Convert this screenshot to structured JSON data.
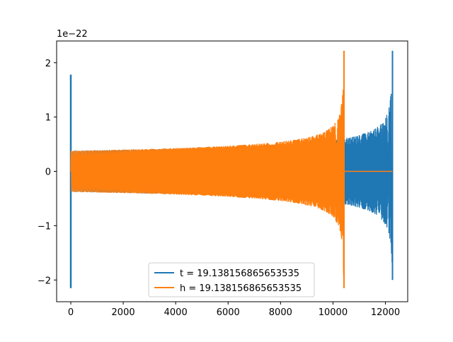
{
  "chart_data": {
    "type": "line",
    "title": "",
    "xlabel": "",
    "ylabel": "",
    "y_offset_text": "1e−22",
    "xlim": [
      -540,
      12850
    ],
    "ylim": [
      -2.4,
      2.4
    ],
    "x_ticks": [
      0,
      2000,
      4000,
      6000,
      8000,
      10000,
      12000
    ],
    "x_tick_labels": [
      "0",
      "2000",
      "4000",
      "6000",
      "8000",
      "10000",
      "12000"
    ],
    "y_ticks": [
      -2,
      -1,
      0,
      1,
      2
    ],
    "y_tick_labels": [
      "−2",
      "−1",
      "0",
      "1",
      "2"
    ],
    "grid": false,
    "legend_position": "lower center",
    "series": [
      {
        "name": "t = 19.138156865653535",
        "color": "#1f77b4",
        "description_points": {
          "spike_at_start": {
            "x": 0,
            "max": 1.78,
            "min": -2.15
          },
          "inspiral_start_amplitude": 0.38,
          "merger_x": 12270,
          "merger_peak": 2.22,
          "merger_trough": -2.0
        }
      },
      {
        "name": "h = 19.138156865653535",
        "color": "#ff7f0e",
        "description_points": {
          "inspiral_start_amplitude": 0.38,
          "merger_x": 10420,
          "merger_peak": 2.22,
          "merger_trough": -2.15,
          "after_merger_value": 0
        }
      }
    ]
  }
}
